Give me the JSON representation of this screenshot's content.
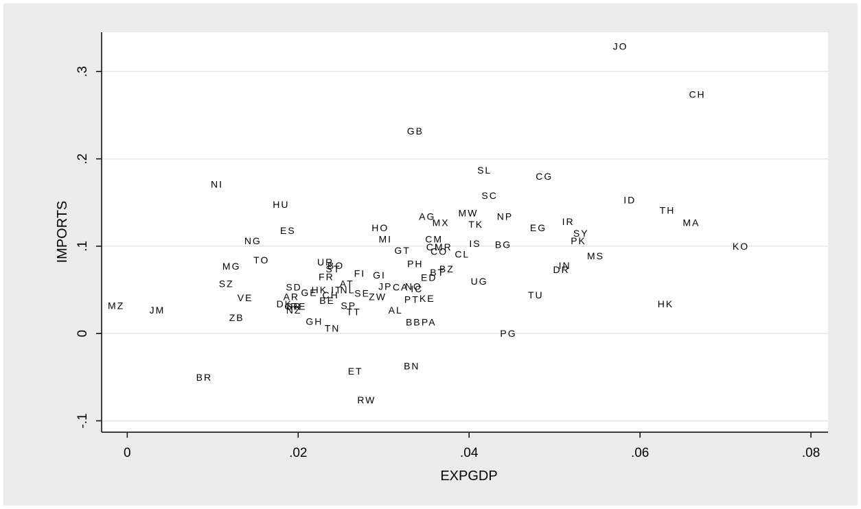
{
  "colors": {
    "outer_background": "#ebebeb",
    "plot_background": "#ffffff",
    "gridline": "#e6e6e6",
    "axis": "#000000",
    "text": "#000000"
  },
  "chart_data": {
    "type": "scatter",
    "marker": "label",
    "xlabel": "EXPGDP",
    "ylabel": "IMPORTS",
    "xlim": [
      -0.003,
      0.082
    ],
    "ylim": [
      -0.113,
      0.345
    ],
    "x_ticks": [
      0,
      0.02,
      0.04,
      0.06,
      0.08
    ],
    "x_tick_labels": [
      "0",
      ".02",
      ".04",
      ".06",
      ".08"
    ],
    "y_ticks": [
      -0.1,
      0,
      0.1,
      0.2,
      0.3
    ],
    "y_tick_labels": [
      "-.1",
      "0",
      ".1",
      ".2",
      ".3"
    ],
    "grid": "horizontal",
    "points": [
      {
        "label": "JO",
        "x": 0.0577,
        "y": 0.329
      },
      {
        "label": "CH",
        "x": 0.0667,
        "y": 0.274
      },
      {
        "label": "GB",
        "x": 0.0337,
        "y": 0.232
      },
      {
        "label": "SL",
        "x": 0.0418,
        "y": 0.187
      },
      {
        "label": "CG",
        "x": 0.0488,
        "y": 0.18
      },
      {
        "label": "NI",
        "x": 0.0105,
        "y": 0.171
      },
      {
        "label": "SC",
        "x": 0.0424,
        "y": 0.158
      },
      {
        "label": "ID",
        "x": 0.0588,
        "y": 0.153
      },
      {
        "label": "HU",
        "x": 0.018,
        "y": 0.148
      },
      {
        "label": "TH",
        "x": 0.0632,
        "y": 0.141
      },
      {
        "label": "MW",
        "x": 0.0399,
        "y": 0.138
      },
      {
        "label": "NP",
        "x": 0.0442,
        "y": 0.134
      },
      {
        "label": "AG",
        "x": 0.0351,
        "y": 0.134
      },
      {
        "label": "MA",
        "x": 0.066,
        "y": 0.127
      },
      {
        "label": "MX",
        "x": 0.0367,
        "y": 0.127
      },
      {
        "label": "IR",
        "x": 0.0516,
        "y": 0.128
      },
      {
        "label": "TK",
        "x": 0.0408,
        "y": 0.125
      },
      {
        "label": "HO",
        "x": 0.0296,
        "y": 0.121
      },
      {
        "label": "EG",
        "x": 0.0481,
        "y": 0.121
      },
      {
        "label": "ES",
        "x": 0.0188,
        "y": 0.118
      },
      {
        "label": "SY",
        "x": 0.0531,
        "y": 0.115
      },
      {
        "label": "MI",
        "x": 0.0302,
        "y": 0.108
      },
      {
        "label": "CM",
        "x": 0.0359,
        "y": 0.108
      },
      {
        "label": "NG",
        "x": 0.0147,
        "y": 0.106
      },
      {
        "label": "PK",
        "x": 0.0528,
        "y": 0.106
      },
      {
        "label": "IS",
        "x": 0.0407,
        "y": 0.103
      },
      {
        "label": "BG",
        "x": 0.044,
        "y": 0.102
      },
      {
        "label": "KO",
        "x": 0.0718,
        "y": 0.1
      },
      {
        "label": "CI",
        "x": 0.0357,
        "y": 0.099
      },
      {
        "label": "MR",
        "x": 0.037,
        "y": 0.099
      },
      {
        "label": "GT",
        "x": 0.0322,
        "y": 0.095
      },
      {
        "label": "CO",
        "x": 0.0365,
        "y": 0.094
      },
      {
        "label": "CL",
        "x": 0.0392,
        "y": 0.091
      },
      {
        "label": "MS",
        "x": 0.0548,
        "y": 0.089
      },
      {
        "label": "TO",
        "x": 0.0157,
        "y": 0.084
      },
      {
        "label": "UR",
        "x": 0.0232,
        "y": 0.082
      },
      {
        "label": "PH",
        "x": 0.0337,
        "y": 0.08
      },
      {
        "label": "BO",
        "x": 0.0244,
        "y": 0.078
      },
      {
        "label": "MG",
        "x": 0.0122,
        "y": 0.077
      },
      {
        "label": "ST",
        "x": 0.0241,
        "y": 0.074
      },
      {
        "label": "IN",
        "x": 0.0512,
        "y": 0.078
      },
      {
        "label": "DR",
        "x": 0.0508,
        "y": 0.073
      },
      {
        "label": "BZ",
        "x": 0.0374,
        "y": 0.074
      },
      {
        "label": "FI",
        "x": 0.0272,
        "y": 0.069
      },
      {
        "label": "BT",
        "x": 0.0363,
        "y": 0.07
      },
      {
        "label": "GI",
        "x": 0.0295,
        "y": 0.067
      },
      {
        "label": "FR",
        "x": 0.0233,
        "y": 0.065
      },
      {
        "label": "ED",
        "x": 0.0353,
        "y": 0.064
      },
      {
        "label": "UG",
        "x": 0.0412,
        "y": 0.06
      },
      {
        "label": "SZ",
        "x": 0.0116,
        "y": 0.057
      },
      {
        "label": "AT",
        "x": 0.0257,
        "y": 0.057
      },
      {
        "label": "JP",
        "x": 0.0302,
        "y": 0.054
      },
      {
        "label": "SD",
        "x": 0.0195,
        "y": 0.053
      },
      {
        "label": "CA",
        "x": 0.032,
        "y": 0.053
      },
      {
        "label": "NO",
        "x": 0.0335,
        "y": 0.054
      },
      {
        "label": "IC",
        "x": 0.0339,
        "y": 0.051
      },
      {
        "label": "IT",
        "x": 0.0245,
        "y": 0.05
      },
      {
        "label": "NL",
        "x": 0.0258,
        "y": 0.05
      },
      {
        "label": "HK",
        "x": 0.0225,
        "y": 0.05
      },
      {
        "label": "GE",
        "x": 0.0213,
        "y": 0.047
      },
      {
        "label": "SE",
        "x": 0.0275,
        "y": 0.046
      },
      {
        "label": "CH",
        "x": 0.0238,
        "y": 0.044
      },
      {
        "label": "TU",
        "x": 0.0478,
        "y": 0.044
      },
      {
        "label": "ZW",
        "x": 0.0293,
        "y": 0.042
      },
      {
        "label": "AR",
        "x": 0.0192,
        "y": 0.042
      },
      {
        "label": "VE",
        "x": 0.0138,
        "y": 0.041
      },
      {
        "label": "PT",
        "x": 0.0333,
        "y": 0.039
      },
      {
        "label": "KE",
        "x": 0.0351,
        "y": 0.04
      },
      {
        "label": "BE",
        "x": 0.0234,
        "y": 0.038
      },
      {
        "label": "HK",
        "x": 0.063,
        "y": 0.034
      },
      {
        "label": "DK",
        "x": 0.0184,
        "y": 0.034
      },
      {
        "label": "SP",
        "x": 0.0259,
        "y": 0.032
      },
      {
        "label": "MZ",
        "x": -0.0013,
        "y": 0.032
      },
      {
        "label": "GR",
        "x": 0.0194,
        "y": 0.031
      },
      {
        "label": "IRE",
        "x": 0.0198,
        "y": 0.031
      },
      {
        "label": "NZ",
        "x": 0.0195,
        "y": 0.027
      },
      {
        "label": "JM",
        "x": 0.0035,
        "y": 0.027
      },
      {
        "label": "AL",
        "x": 0.0314,
        "y": 0.027
      },
      {
        "label": "TT",
        "x": 0.0265,
        "y": 0.025
      },
      {
        "label": "ZB",
        "x": 0.0128,
        "y": 0.018
      },
      {
        "label": "GH",
        "x": 0.0219,
        "y": 0.014
      },
      {
        "label": "BB",
        "x": 0.0335,
        "y": 0.013
      },
      {
        "label": "PA",
        "x": 0.0353,
        "y": 0.013
      },
      {
        "label": "TN",
        "x": 0.024,
        "y": 0.006
      },
      {
        "label": "PG",
        "x": 0.0446,
        "y": 0.0
      },
      {
        "label": "BN",
        "x": 0.0333,
        "y": -0.037
      },
      {
        "label": "ET",
        "x": 0.0267,
        "y": -0.043
      },
      {
        "label": "BR",
        "x": 0.009,
        "y": -0.05
      },
      {
        "label": "RW",
        "x": 0.028,
        "y": -0.076
      }
    ]
  }
}
